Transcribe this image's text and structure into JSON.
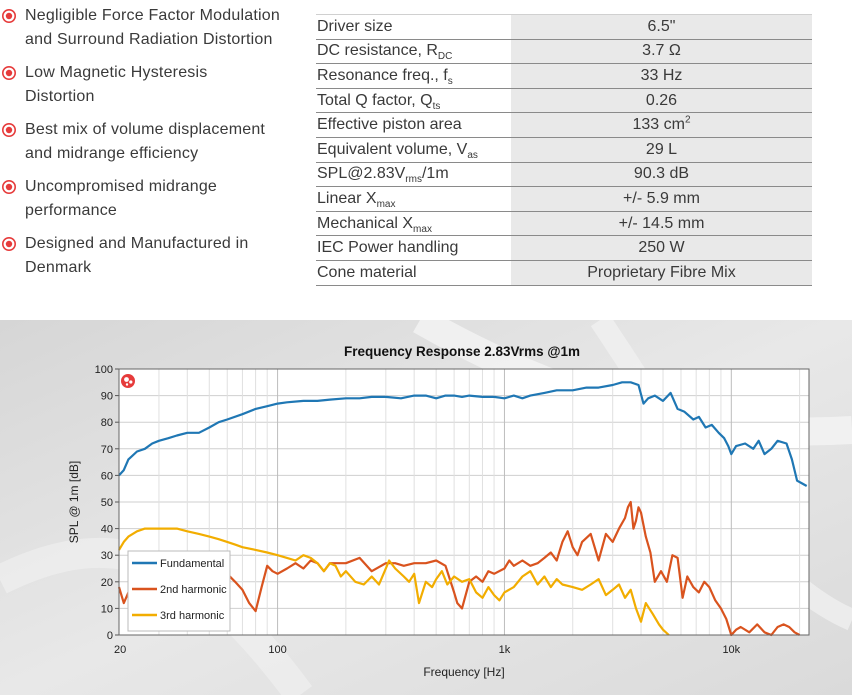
{
  "features": [
    {
      "line1": "Negligible Force Factor Modulation",
      "line2": "and Surround Radiation Distortion"
    },
    {
      "line1": "Low Magnetic Hysteresis",
      "line2": "Distortion"
    },
    {
      "line1": "Best mix of volume displacement",
      "line2": "and midrange efficiency"
    },
    {
      "line1": "Uncompromised midrange",
      "line2": "performance"
    },
    {
      "line1": "Designed and Manufactured in",
      "line2": "Denmark"
    }
  ],
  "specs": [
    {
      "label": "Driver size",
      "sub": "",
      "sub_tail": "",
      "value": "6.5\"",
      "value_sup": ""
    },
    {
      "label": "DC resistance, R",
      "sub": "DC",
      "sub_tail": "",
      "value": "3.7 Ω",
      "value_sup": ""
    },
    {
      "label": "Resonance freq., f",
      "sub": "s",
      "sub_tail": "",
      "value": "33 Hz",
      "value_sup": ""
    },
    {
      "label": "Total Q factor, Q",
      "sub": "ts",
      "sub_tail": "",
      "value": "0.26",
      "value_sup": ""
    },
    {
      "label": "Effective piston area",
      "sub": "",
      "sub_tail": "",
      "value": "133 cm",
      "value_sup": "2"
    },
    {
      "label": "Equivalent volume, V",
      "sub": "as",
      "sub_tail": "",
      "value": "29 L",
      "value_sup": ""
    },
    {
      "label": "SPL@2.83V",
      "sub": "rms",
      "sub_tail": "/1m",
      "value": "90.3 dB",
      "value_sup": ""
    },
    {
      "label": "Linear X",
      "sub": "max",
      "sub_tail": "",
      "value": "+/- 5.9 mm",
      "value_sup": ""
    },
    {
      "label": "Mechanical X",
      "sub": "max",
      "sub_tail": "",
      "value": "+/- 14.5 mm",
      "value_sup": ""
    },
    {
      "label": "IEC Power handling",
      "sub": "",
      "sub_tail": "",
      "value": "250 W",
      "value_sup": ""
    },
    {
      "label": "Cone material",
      "sub": "",
      "sub_tail": "",
      "value": "Proprietary Fibre Mix",
      "value_sup": ""
    }
  ],
  "colors": {
    "accent": "#e63b3b",
    "fundamental": "#1f77b4",
    "harmonic2": "#d9531e",
    "harmonic3": "#f2ad00"
  },
  "chart_data": {
    "type": "line",
    "title": "Frequency Response 2.83Vrms @1m",
    "xlabel": "Frequency [Hz]",
    "ylabel": "SPL @ 1m [dB]",
    "xscale": "log",
    "xlim": [
      20,
      22000
    ],
    "ylim": [
      0,
      100
    ],
    "xticks": [
      {
        "v": 20,
        "label": "20"
      },
      {
        "v": 100,
        "label": "100"
      },
      {
        "v": 1000,
        "label": "1k"
      },
      {
        "v": 10000,
        "label": "10k"
      }
    ],
    "yticks": [
      0,
      10,
      20,
      30,
      40,
      50,
      60,
      70,
      80,
      90,
      100
    ],
    "grid": true,
    "legend_position": "bottom-left",
    "series": [
      {
        "name": "Fundamental",
        "key": "fundamental",
        "points": [
          [
            20,
            60
          ],
          [
            21,
            62
          ],
          [
            22,
            66
          ],
          [
            24,
            69
          ],
          [
            26,
            70
          ],
          [
            28,
            72
          ],
          [
            30,
            73
          ],
          [
            33,
            74
          ],
          [
            36,
            75
          ],
          [
            40,
            76
          ],
          [
            45,
            76
          ],
          [
            50,
            78
          ],
          [
            55,
            80
          ],
          [
            60,
            81
          ],
          [
            70,
            83
          ],
          [
            80,
            85
          ],
          [
            90,
            86
          ],
          [
            100,
            87
          ],
          [
            110,
            87.5
          ],
          [
            130,
            88
          ],
          [
            150,
            88
          ],
          [
            170,
            88.5
          ],
          [
            200,
            89
          ],
          [
            230,
            89
          ],
          [
            260,
            89.5
          ],
          [
            300,
            89.5
          ],
          [
            350,
            89
          ],
          [
            400,
            90
          ],
          [
            450,
            90
          ],
          [
            500,
            89
          ],
          [
            550,
            90
          ],
          [
            600,
            90
          ],
          [
            650,
            89.5
          ],
          [
            700,
            90
          ],
          [
            800,
            89.5
          ],
          [
            900,
            89.5
          ],
          [
            1000,
            89
          ],
          [
            1100,
            90
          ],
          [
            1200,
            89
          ],
          [
            1300,
            90
          ],
          [
            1500,
            91
          ],
          [
            1700,
            92
          ],
          [
            2000,
            92
          ],
          [
            2300,
            93
          ],
          [
            2600,
            93
          ],
          [
            3000,
            94
          ],
          [
            3300,
            95
          ],
          [
            3600,
            95
          ],
          [
            3900,
            94
          ],
          [
            4100,
            87
          ],
          [
            4300,
            89
          ],
          [
            4600,
            90
          ],
          [
            5000,
            88
          ],
          [
            5400,
            91
          ],
          [
            5800,
            85
          ],
          [
            6200,
            84
          ],
          [
            6800,
            81
          ],
          [
            7200,
            82
          ],
          [
            7700,
            78
          ],
          [
            8200,
            79
          ],
          [
            8800,
            76
          ],
          [
            9300,
            74
          ],
          [
            9700,
            71
          ],
          [
            10000,
            68
          ],
          [
            10500,
            71
          ],
          [
            11500,
            72
          ],
          [
            12500,
            70
          ],
          [
            13200,
            73
          ],
          [
            14000,
            68
          ],
          [
            15000,
            70
          ],
          [
            16000,
            73
          ],
          [
            17500,
            72
          ],
          [
            18500,
            66
          ],
          [
            19500,
            58
          ],
          [
            20500,
            57
          ],
          [
            21500,
            56
          ]
        ]
      },
      {
        "name": "2nd harmonic",
        "key": "harmonic2",
        "points": [
          [
            20,
            18
          ],
          [
            21,
            12
          ],
          [
            22,
            16
          ],
          [
            24,
            22
          ],
          [
            26,
            20
          ],
          [
            28,
            24
          ],
          [
            30,
            21
          ],
          [
            33,
            25
          ],
          [
            36,
            23
          ],
          [
            40,
            26
          ],
          [
            45,
            27
          ],
          [
            48,
            28
          ],
          [
            50,
            25
          ],
          [
            55,
            28
          ],
          [
            60,
            23
          ],
          [
            65,
            20
          ],
          [
            70,
            17
          ],
          [
            75,
            12
          ],
          [
            80,
            9
          ],
          [
            85,
            18
          ],
          [
            90,
            26
          ],
          [
            95,
            24
          ],
          [
            100,
            23
          ],
          [
            110,
            25
          ],
          [
            120,
            27
          ],
          [
            130,
            25
          ],
          [
            140,
            28
          ],
          [
            150,
            27
          ],
          [
            160,
            24
          ],
          [
            170,
            27
          ],
          [
            180,
            27
          ],
          [
            200,
            27
          ],
          [
            230,
            29
          ],
          [
            260,
            24
          ],
          [
            300,
            27
          ],
          [
            330,
            27
          ],
          [
            360,
            26
          ],
          [
            400,
            27
          ],
          [
            450,
            27
          ],
          [
            500,
            28
          ],
          [
            550,
            26
          ],
          [
            600,
            16
          ],
          [
            620,
            12
          ],
          [
            650,
            10
          ],
          [
            700,
            20
          ],
          [
            750,
            22
          ],
          [
            800,
            20
          ],
          [
            850,
            24
          ],
          [
            900,
            23
          ],
          [
            1000,
            25
          ],
          [
            1050,
            28
          ],
          [
            1100,
            26
          ],
          [
            1200,
            28
          ],
          [
            1300,
            26
          ],
          [
            1400,
            27
          ],
          [
            1500,
            29
          ],
          [
            1600,
            31
          ],
          [
            1700,
            28
          ],
          [
            1800,
            35
          ],
          [
            1900,
            39
          ],
          [
            2000,
            33
          ],
          [
            2100,
            30
          ],
          [
            2200,
            35
          ],
          [
            2400,
            38
          ],
          [
            2600,
            28
          ],
          [
            2800,
            38
          ],
          [
            3000,
            35
          ],
          [
            3200,
            40
          ],
          [
            3400,
            44
          ],
          [
            3500,
            48
          ],
          [
            3600,
            50
          ],
          [
            3700,
            40
          ],
          [
            3800,
            43
          ],
          [
            3900,
            48
          ],
          [
            4000,
            46
          ],
          [
            4200,
            37
          ],
          [
            4400,
            31
          ],
          [
            4600,
            20
          ],
          [
            4900,
            24
          ],
          [
            5200,
            20
          ],
          [
            5500,
            30
          ],
          [
            5800,
            29
          ],
          [
            6100,
            14
          ],
          [
            6400,
            22
          ],
          [
            6800,
            18
          ],
          [
            7200,
            16
          ],
          [
            7600,
            20
          ],
          [
            8000,
            18
          ],
          [
            8500,
            13
          ],
          [
            9000,
            10
          ],
          [
            9500,
            6
          ],
          [
            10000,
            0
          ],
          [
            10500,
            2
          ],
          [
            11000,
            3
          ],
          [
            12000,
            1
          ],
          [
            13000,
            4
          ],
          [
            14000,
            1
          ],
          [
            15000,
            0
          ],
          [
            16000,
            3
          ],
          [
            17000,
            4
          ],
          [
            18000,
            3
          ],
          [
            19000,
            1
          ],
          [
            20000,
            0
          ]
        ]
      },
      {
        "name": "3rd harmonic",
        "key": "harmonic3",
        "points": [
          [
            20,
            32
          ],
          [
            21,
            35
          ],
          [
            22,
            37
          ],
          [
            24,
            39
          ],
          [
            26,
            40
          ],
          [
            28,
            40
          ],
          [
            30,
            40
          ],
          [
            33,
            40
          ],
          [
            36,
            40
          ],
          [
            40,
            39
          ],
          [
            45,
            38
          ],
          [
            50,
            37
          ],
          [
            55,
            36
          ],
          [
            60,
            35
          ],
          [
            65,
            34
          ],
          [
            70,
            33
          ],
          [
            80,
            32
          ],
          [
            90,
            31
          ],
          [
            100,
            30
          ],
          [
            110,
            29
          ],
          [
            120,
            28
          ],
          [
            130,
            30
          ],
          [
            140,
            29
          ],
          [
            150,
            27
          ],
          [
            160,
            24
          ],
          [
            170,
            27
          ],
          [
            180,
            26
          ],
          [
            190,
            22
          ],
          [
            200,
            24
          ],
          [
            220,
            20
          ],
          [
            240,
            19
          ],
          [
            260,
            22
          ],
          [
            280,
            19
          ],
          [
            300,
            25
          ],
          [
            310,
            28
          ],
          [
            330,
            25
          ],
          [
            360,
            22
          ],
          [
            380,
            20
          ],
          [
            400,
            23
          ],
          [
            420,
            12
          ],
          [
            450,
            20
          ],
          [
            480,
            18
          ],
          [
            500,
            21
          ],
          [
            530,
            24
          ],
          [
            560,
            19
          ],
          [
            600,
            22
          ],
          [
            650,
            20
          ],
          [
            700,
            21
          ],
          [
            750,
            16
          ],
          [
            800,
            14
          ],
          [
            850,
            18
          ],
          [
            900,
            15
          ],
          [
            950,
            13
          ],
          [
            1000,
            16
          ],
          [
            1100,
            18
          ],
          [
            1200,
            22
          ],
          [
            1300,
            24
          ],
          [
            1400,
            19
          ],
          [
            1500,
            22
          ],
          [
            1600,
            18
          ],
          [
            1700,
            21
          ],
          [
            1800,
            19
          ],
          [
            2000,
            18
          ],
          [
            2200,
            17
          ],
          [
            2400,
            19
          ],
          [
            2600,
            21
          ],
          [
            2800,
            15
          ],
          [
            3000,
            17
          ],
          [
            3200,
            19
          ],
          [
            3400,
            14
          ],
          [
            3600,
            17
          ],
          [
            3800,
            10
          ],
          [
            4000,
            5
          ],
          [
            4200,
            12
          ],
          [
            4500,
            8
          ],
          [
            4800,
            4
          ],
          [
            5000,
            2
          ],
          [
            5300,
            0
          ]
        ]
      }
    ]
  }
}
